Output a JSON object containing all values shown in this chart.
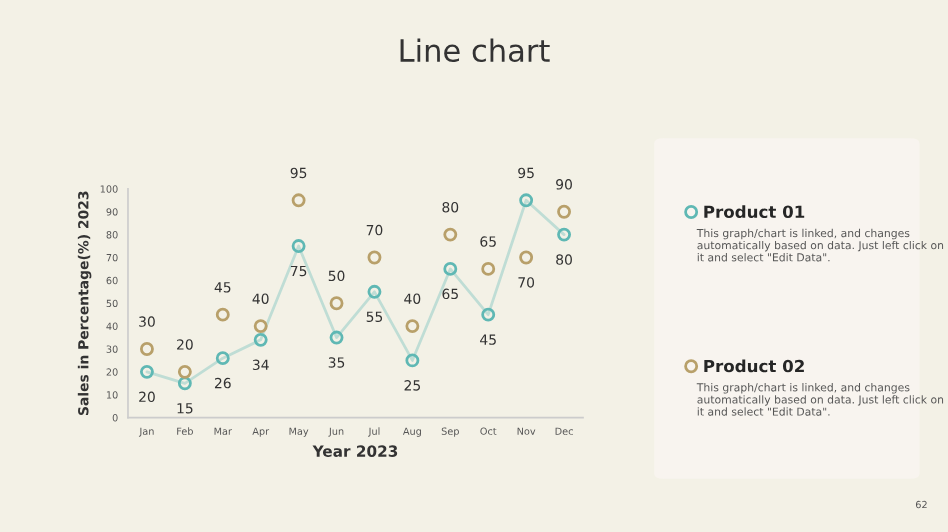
{
  "chart_data": {
    "type": "line",
    "title": "Line chart",
    "xlabel": "Year 2023",
    "ylabel": "Sales in Percentage(%) 2023",
    "categories": [
      "Jan",
      "Feb",
      "Mar",
      "Apr",
      "May",
      "Jun",
      "Jul",
      "Aug",
      "Sep",
      "Oct",
      "Nov",
      "Dec"
    ],
    "series": [
      {
        "name": "Product 01",
        "color": "#5fb8b4",
        "values": [
          20,
          15,
          26,
          34,
          75,
          35,
          55,
          25,
          65,
          45,
          95,
          80
        ]
      },
      {
        "name": "Product 02",
        "type": "scatter",
        "color": "#b8a06a",
        "values": [
          30,
          20,
          45,
          40,
          95,
          50,
          70,
          40,
          80,
          65,
          70,
          90
        ]
      }
    ],
    "ylim": [
      0,
      100
    ],
    "yticks": [
      0,
      10,
      20,
      30,
      40,
      50,
      60,
      70,
      80,
      90,
      100
    ],
    "data_labels": true,
    "marker": "circle",
    "grid": false,
    "legend": "right",
    "annotations": [
      "This graph/chart is linked, and changes automatically based on data. Just left click on it and select \"Edit Data\".",
      "This graph/chart is linked, and changes automatically based on data. Just left click on it and select \"Edit Data\".",
      "62"
    ]
  }
}
